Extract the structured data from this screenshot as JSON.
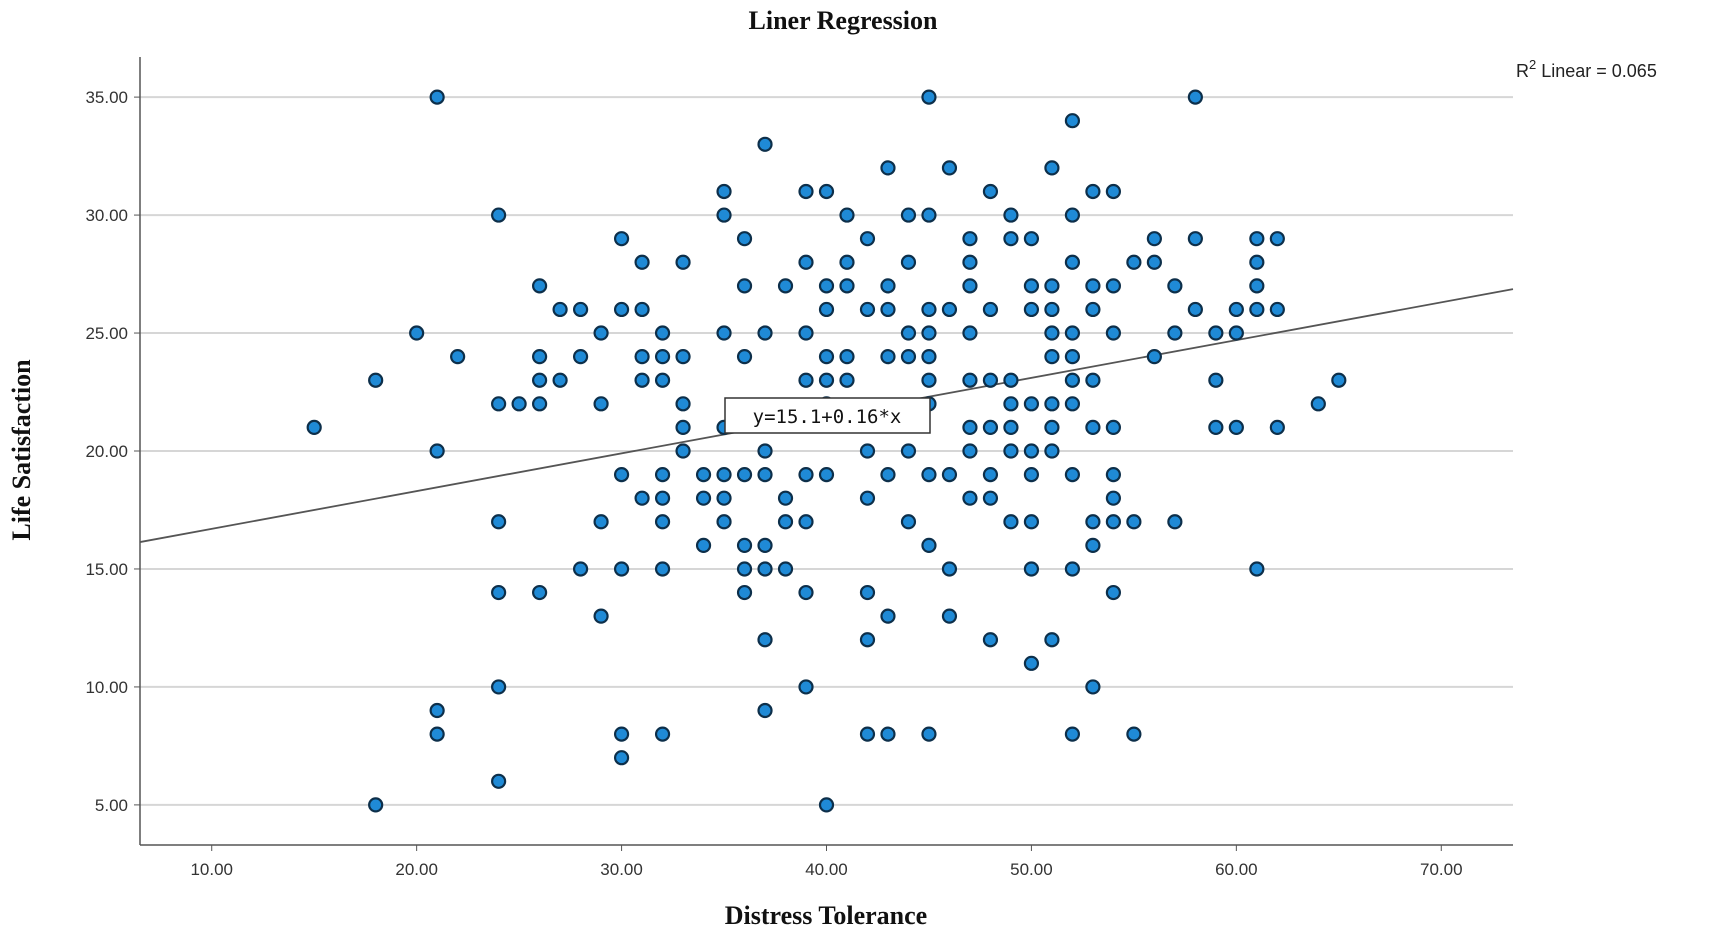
{
  "chart_data": {
    "type": "scatter",
    "title": "Liner Regression",
    "xlabel": "Distress Tolerance",
    "ylabel": "Life Satisfaction",
    "xlim": [
      6.5,
      73.5
    ],
    "ylim": [
      3.3,
      36.7
    ],
    "x_ticks": [
      "10.00",
      "20.00",
      "30.00",
      "40.00",
      "50.00",
      "60.00",
      "70.00"
    ],
    "y_ticks": [
      "5.00",
      "10.00",
      "15.00",
      "20.00",
      "25.00",
      "30.00",
      "35.00"
    ],
    "grid": "horizontal",
    "point_color": "#1f8ad6",
    "line_color": "#555555",
    "fit_line": {
      "intercept": 15.1,
      "slope": 0.16
    },
    "equation_label": "y=15.1+0.16*x",
    "r2_label_prefix": "R",
    "r2_label_sup": "2",
    "r2_label_suffix": " Linear = 0.065",
    "points": [
      [
        15,
        21
      ],
      [
        18,
        23
      ],
      [
        18,
        5
      ],
      [
        20,
        25
      ],
      [
        21,
        35
      ],
      [
        21,
        20
      ],
      [
        21,
        9
      ],
      [
        21,
        8
      ],
      [
        22,
        24
      ],
      [
        24,
        30
      ],
      [
        24,
        22
      ],
      [
        24,
        17
      ],
      [
        24,
        14
      ],
      [
        24,
        10
      ],
      [
        24,
        6
      ],
      [
        25,
        22
      ],
      [
        26,
        27
      ],
      [
        26,
        24
      ],
      [
        26,
        23
      ],
      [
        26,
        22
      ],
      [
        26,
        14
      ],
      [
        27,
        26
      ],
      [
        27,
        23
      ],
      [
        28,
        26
      ],
      [
        28,
        24
      ],
      [
        28,
        15
      ],
      [
        29,
        25
      ],
      [
        29,
        22
      ],
      [
        29,
        17
      ],
      [
        29,
        13
      ],
      [
        30,
        29
      ],
      [
        30,
        26
      ],
      [
        30,
        19
      ],
      [
        30,
        15
      ],
      [
        30,
        8
      ],
      [
        30,
        7
      ],
      [
        31,
        28
      ],
      [
        31,
        26
      ],
      [
        31,
        24
      ],
      [
        31,
        23
      ],
      [
        31,
        18
      ],
      [
        32,
        25
      ],
      [
        32,
        24
      ],
      [
        32,
        23
      ],
      [
        32,
        19
      ],
      [
        32,
        18
      ],
      [
        32,
        17
      ],
      [
        32,
        15
      ],
      [
        32,
        8
      ],
      [
        33,
        28
      ],
      [
        33,
        24
      ],
      [
        33,
        22
      ],
      [
        33,
        21
      ],
      [
        33,
        20
      ],
      [
        34,
        19
      ],
      [
        34,
        18
      ],
      [
        34,
        16
      ],
      [
        35,
        31
      ],
      [
        35,
        30
      ],
      [
        35,
        25
      ],
      [
        35,
        21
      ],
      [
        35,
        19
      ],
      [
        35,
        18
      ],
      [
        35,
        17
      ],
      [
        36,
        29
      ],
      [
        36,
        27
      ],
      [
        36,
        24
      ],
      [
        36,
        19
      ],
      [
        36,
        16
      ],
      [
        36,
        15
      ],
      [
        36,
        14
      ],
      [
        37,
        33
      ],
      [
        37,
        25
      ],
      [
        37,
        20
      ],
      [
        37,
        19
      ],
      [
        37,
        16
      ],
      [
        37,
        15
      ],
      [
        37,
        12
      ],
      [
        37,
        9
      ],
      [
        38,
        27
      ],
      [
        38,
        18
      ],
      [
        38,
        17
      ],
      [
        38,
        15
      ],
      [
        39,
        31
      ],
      [
        39,
        28
      ],
      [
        39,
        25
      ],
      [
        39,
        23
      ],
      [
        39,
        19
      ],
      [
        39,
        17
      ],
      [
        39,
        14
      ],
      [
        39,
        10
      ],
      [
        40,
        31
      ],
      [
        40,
        27
      ],
      [
        40,
        26
      ],
      [
        40,
        24
      ],
      [
        40,
        23
      ],
      [
        40,
        22
      ],
      [
        40,
        19
      ],
      [
        40,
        5
      ],
      [
        41,
        30
      ],
      [
        41,
        28
      ],
      [
        41,
        27
      ],
      [
        41,
        24
      ],
      [
        41,
        23
      ],
      [
        42,
        29
      ],
      [
        42,
        26
      ],
      [
        42,
        20
      ],
      [
        42,
        18
      ],
      [
        42,
        14
      ],
      [
        42,
        12
      ],
      [
        42,
        8
      ],
      [
        43,
        32
      ],
      [
        43,
        27
      ],
      [
        43,
        26
      ],
      [
        43,
        24
      ],
      [
        43,
        19
      ],
      [
        43,
        13
      ],
      [
        43,
        8
      ],
      [
        44,
        30
      ],
      [
        44,
        28
      ],
      [
        44,
        25
      ],
      [
        44,
        24
      ],
      [
        44,
        20
      ],
      [
        44,
        17
      ],
      [
        45,
        35
      ],
      [
        45,
        30
      ],
      [
        45,
        26
      ],
      [
        45,
        25
      ],
      [
        45,
        24
      ],
      [
        45,
        23
      ],
      [
        45,
        22
      ],
      [
        45,
        19
      ],
      [
        45,
        16
      ],
      [
        45,
        8
      ],
      [
        46,
        32
      ],
      [
        46,
        26
      ],
      [
        46,
        19
      ],
      [
        46,
        15
      ],
      [
        46,
        13
      ],
      [
        47,
        29
      ],
      [
        47,
        28
      ],
      [
        47,
        27
      ],
      [
        47,
        25
      ],
      [
        47,
        23
      ],
      [
        47,
        21
      ],
      [
        47,
        20
      ],
      [
        47,
        18
      ],
      [
        48,
        31
      ],
      [
        48,
        26
      ],
      [
        48,
        23
      ],
      [
        48,
        21
      ],
      [
        48,
        19
      ],
      [
        48,
        18
      ],
      [
        48,
        12
      ],
      [
        49,
        30
      ],
      [
        49,
        29
      ],
      [
        49,
        23
      ],
      [
        49,
        22
      ],
      [
        49,
        21
      ],
      [
        49,
        20
      ],
      [
        49,
        17
      ],
      [
        50,
        29
      ],
      [
        50,
        27
      ],
      [
        50,
        26
      ],
      [
        50,
        22
      ],
      [
        50,
        20
      ],
      [
        50,
        19
      ],
      [
        50,
        17
      ],
      [
        50,
        15
      ],
      [
        50,
        11
      ],
      [
        51,
        32
      ],
      [
        51,
        27
      ],
      [
        51,
        26
      ],
      [
        51,
        25
      ],
      [
        51,
        24
      ],
      [
        51,
        22
      ],
      [
        51,
        21
      ],
      [
        51,
        20
      ],
      [
        51,
        12
      ],
      [
        52,
        34
      ],
      [
        52,
        30
      ],
      [
        52,
        28
      ],
      [
        52,
        25
      ],
      [
        52,
        24
      ],
      [
        52,
        23
      ],
      [
        52,
        22
      ],
      [
        52,
        19
      ],
      [
        52,
        15
      ],
      [
        52,
        8
      ],
      [
        53,
        31
      ],
      [
        53,
        27
      ],
      [
        53,
        26
      ],
      [
        53,
        23
      ],
      [
        53,
        21
      ],
      [
        53,
        17
      ],
      [
        53,
        16
      ],
      [
        53,
        10
      ],
      [
        54,
        31
      ],
      [
        54,
        27
      ],
      [
        54,
        25
      ],
      [
        54,
        21
      ],
      [
        54,
        19
      ],
      [
        54,
        18
      ],
      [
        54,
        17
      ],
      [
        54,
        14
      ],
      [
        55,
        28
      ],
      [
        55,
        17
      ],
      [
        55,
        8
      ],
      [
        56,
        29
      ],
      [
        56,
        28
      ],
      [
        56,
        24
      ],
      [
        57,
        27
      ],
      [
        57,
        25
      ],
      [
        57,
        17
      ],
      [
        58,
        35
      ],
      [
        58,
        29
      ],
      [
        58,
        26
      ],
      [
        59,
        25
      ],
      [
        59,
        23
      ],
      [
        59,
        21
      ],
      [
        60,
        26
      ],
      [
        60,
        25
      ],
      [
        60,
        21
      ],
      [
        61,
        29
      ],
      [
        61,
        28
      ],
      [
        61,
        27
      ],
      [
        61,
        26
      ],
      [
        61,
        15
      ],
      [
        62,
        29
      ],
      [
        62,
        26
      ],
      [
        62,
        21
      ],
      [
        64,
        22
      ],
      [
        65,
        23
      ]
    ]
  }
}
